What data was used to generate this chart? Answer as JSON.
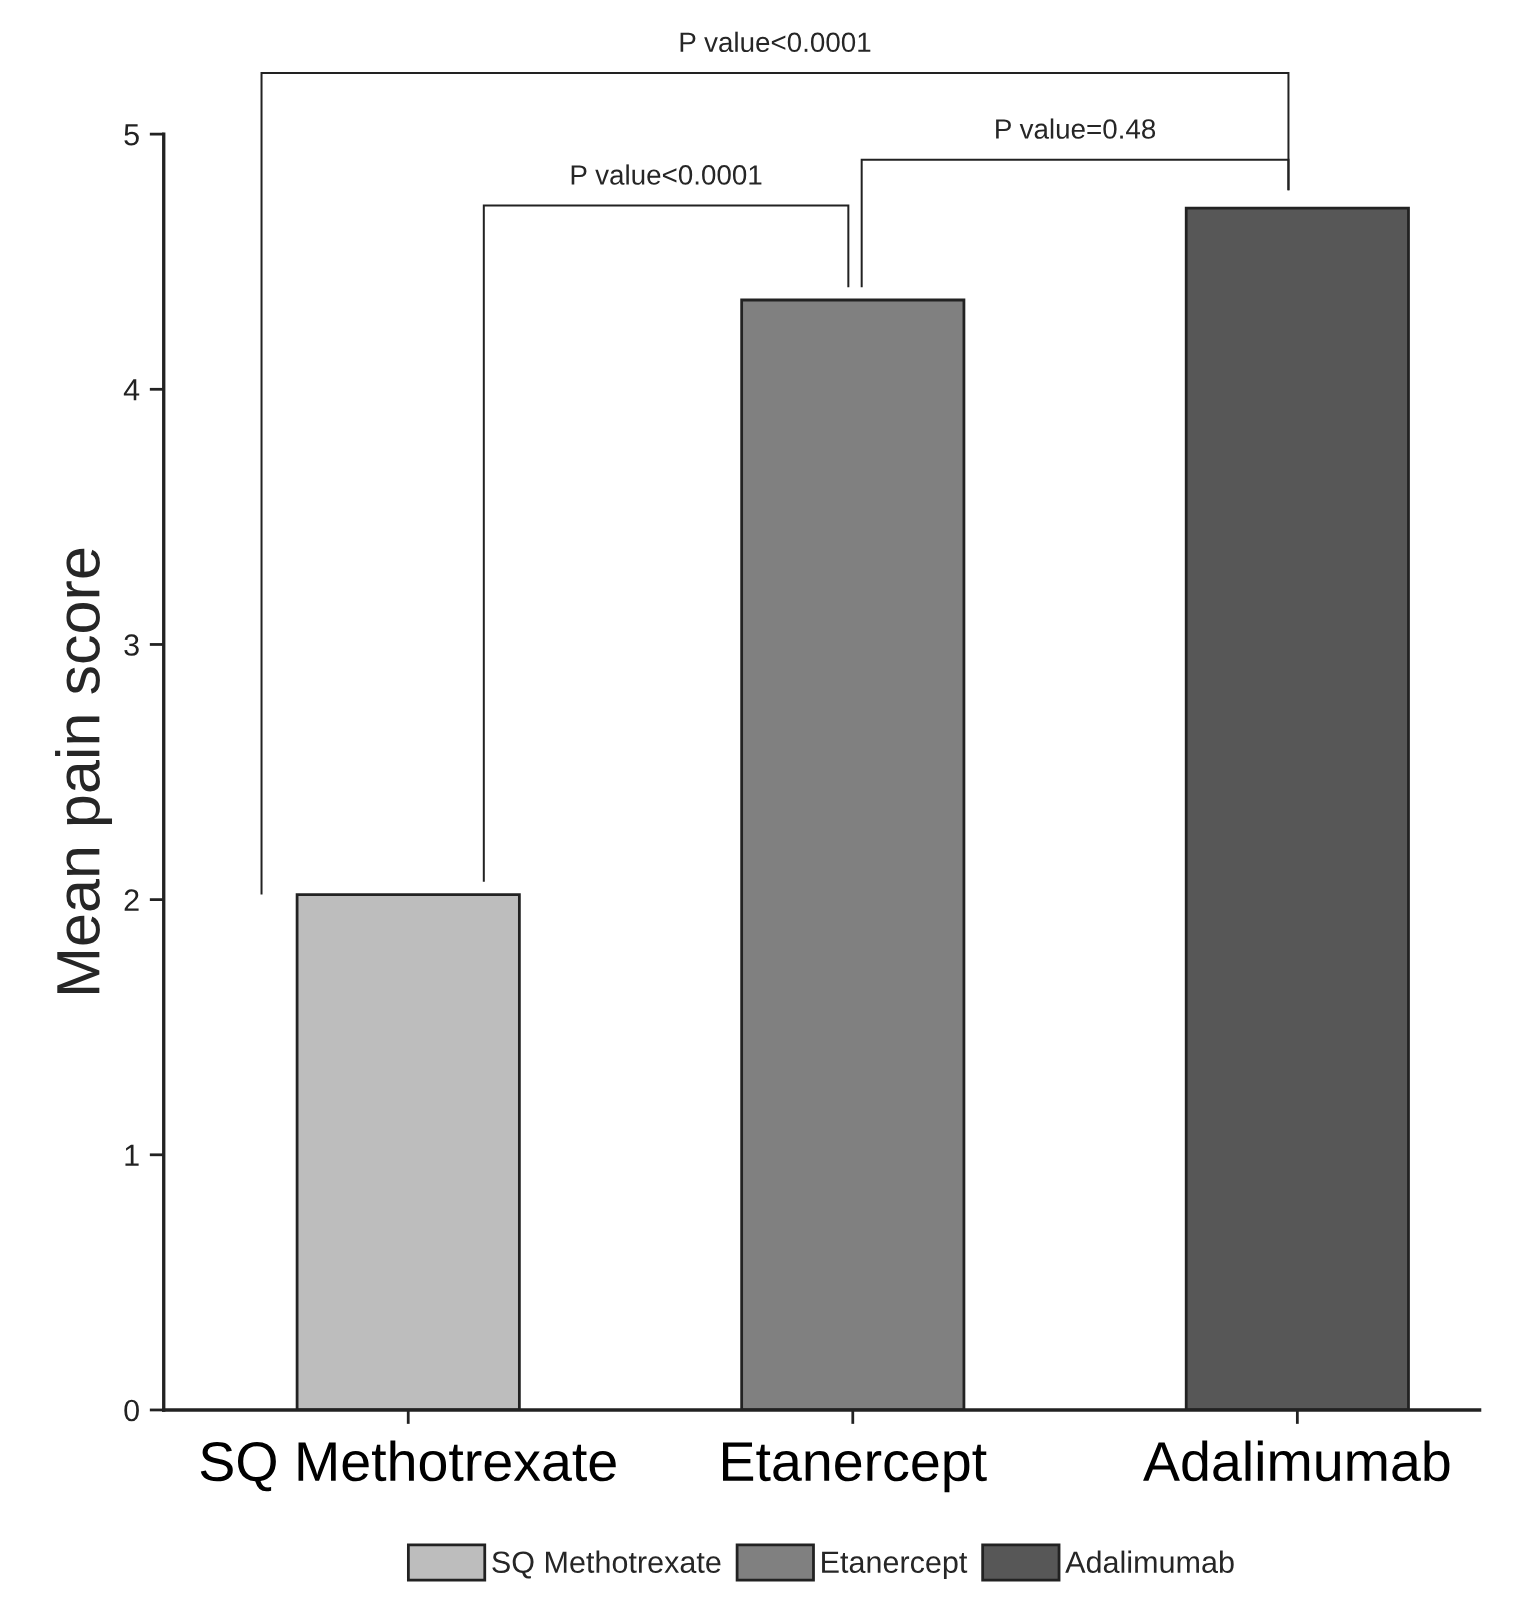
{
  "chart_data": {
    "type": "bar",
    "ylabel": "Mean pain score",
    "categories": [
      "SQ Methotrexate",
      "Etanercept",
      "Adalimumab"
    ],
    "series": [
      {
        "name": "SQ Methotrexate",
        "color": "#bdbdbd",
        "values": [
          2.02,
          null,
          null
        ]
      },
      {
        "name": "Etanercept",
        "color": "#808080",
        "values": [
          null,
          4.35,
          null
        ]
      },
      {
        "name": "Adalimumab",
        "color": "#575757",
        "values": [
          null,
          null,
          4.71
        ]
      }
    ],
    "ylim": [
      0,
      5
    ],
    "yticks": [
      0,
      1,
      2,
      3,
      4,
      5
    ],
    "grid": false,
    "legend": "bottom",
    "annotations": [
      "P value<0.0001",
      "P value=0.48",
      "P value<0.0001"
    ]
  }
}
